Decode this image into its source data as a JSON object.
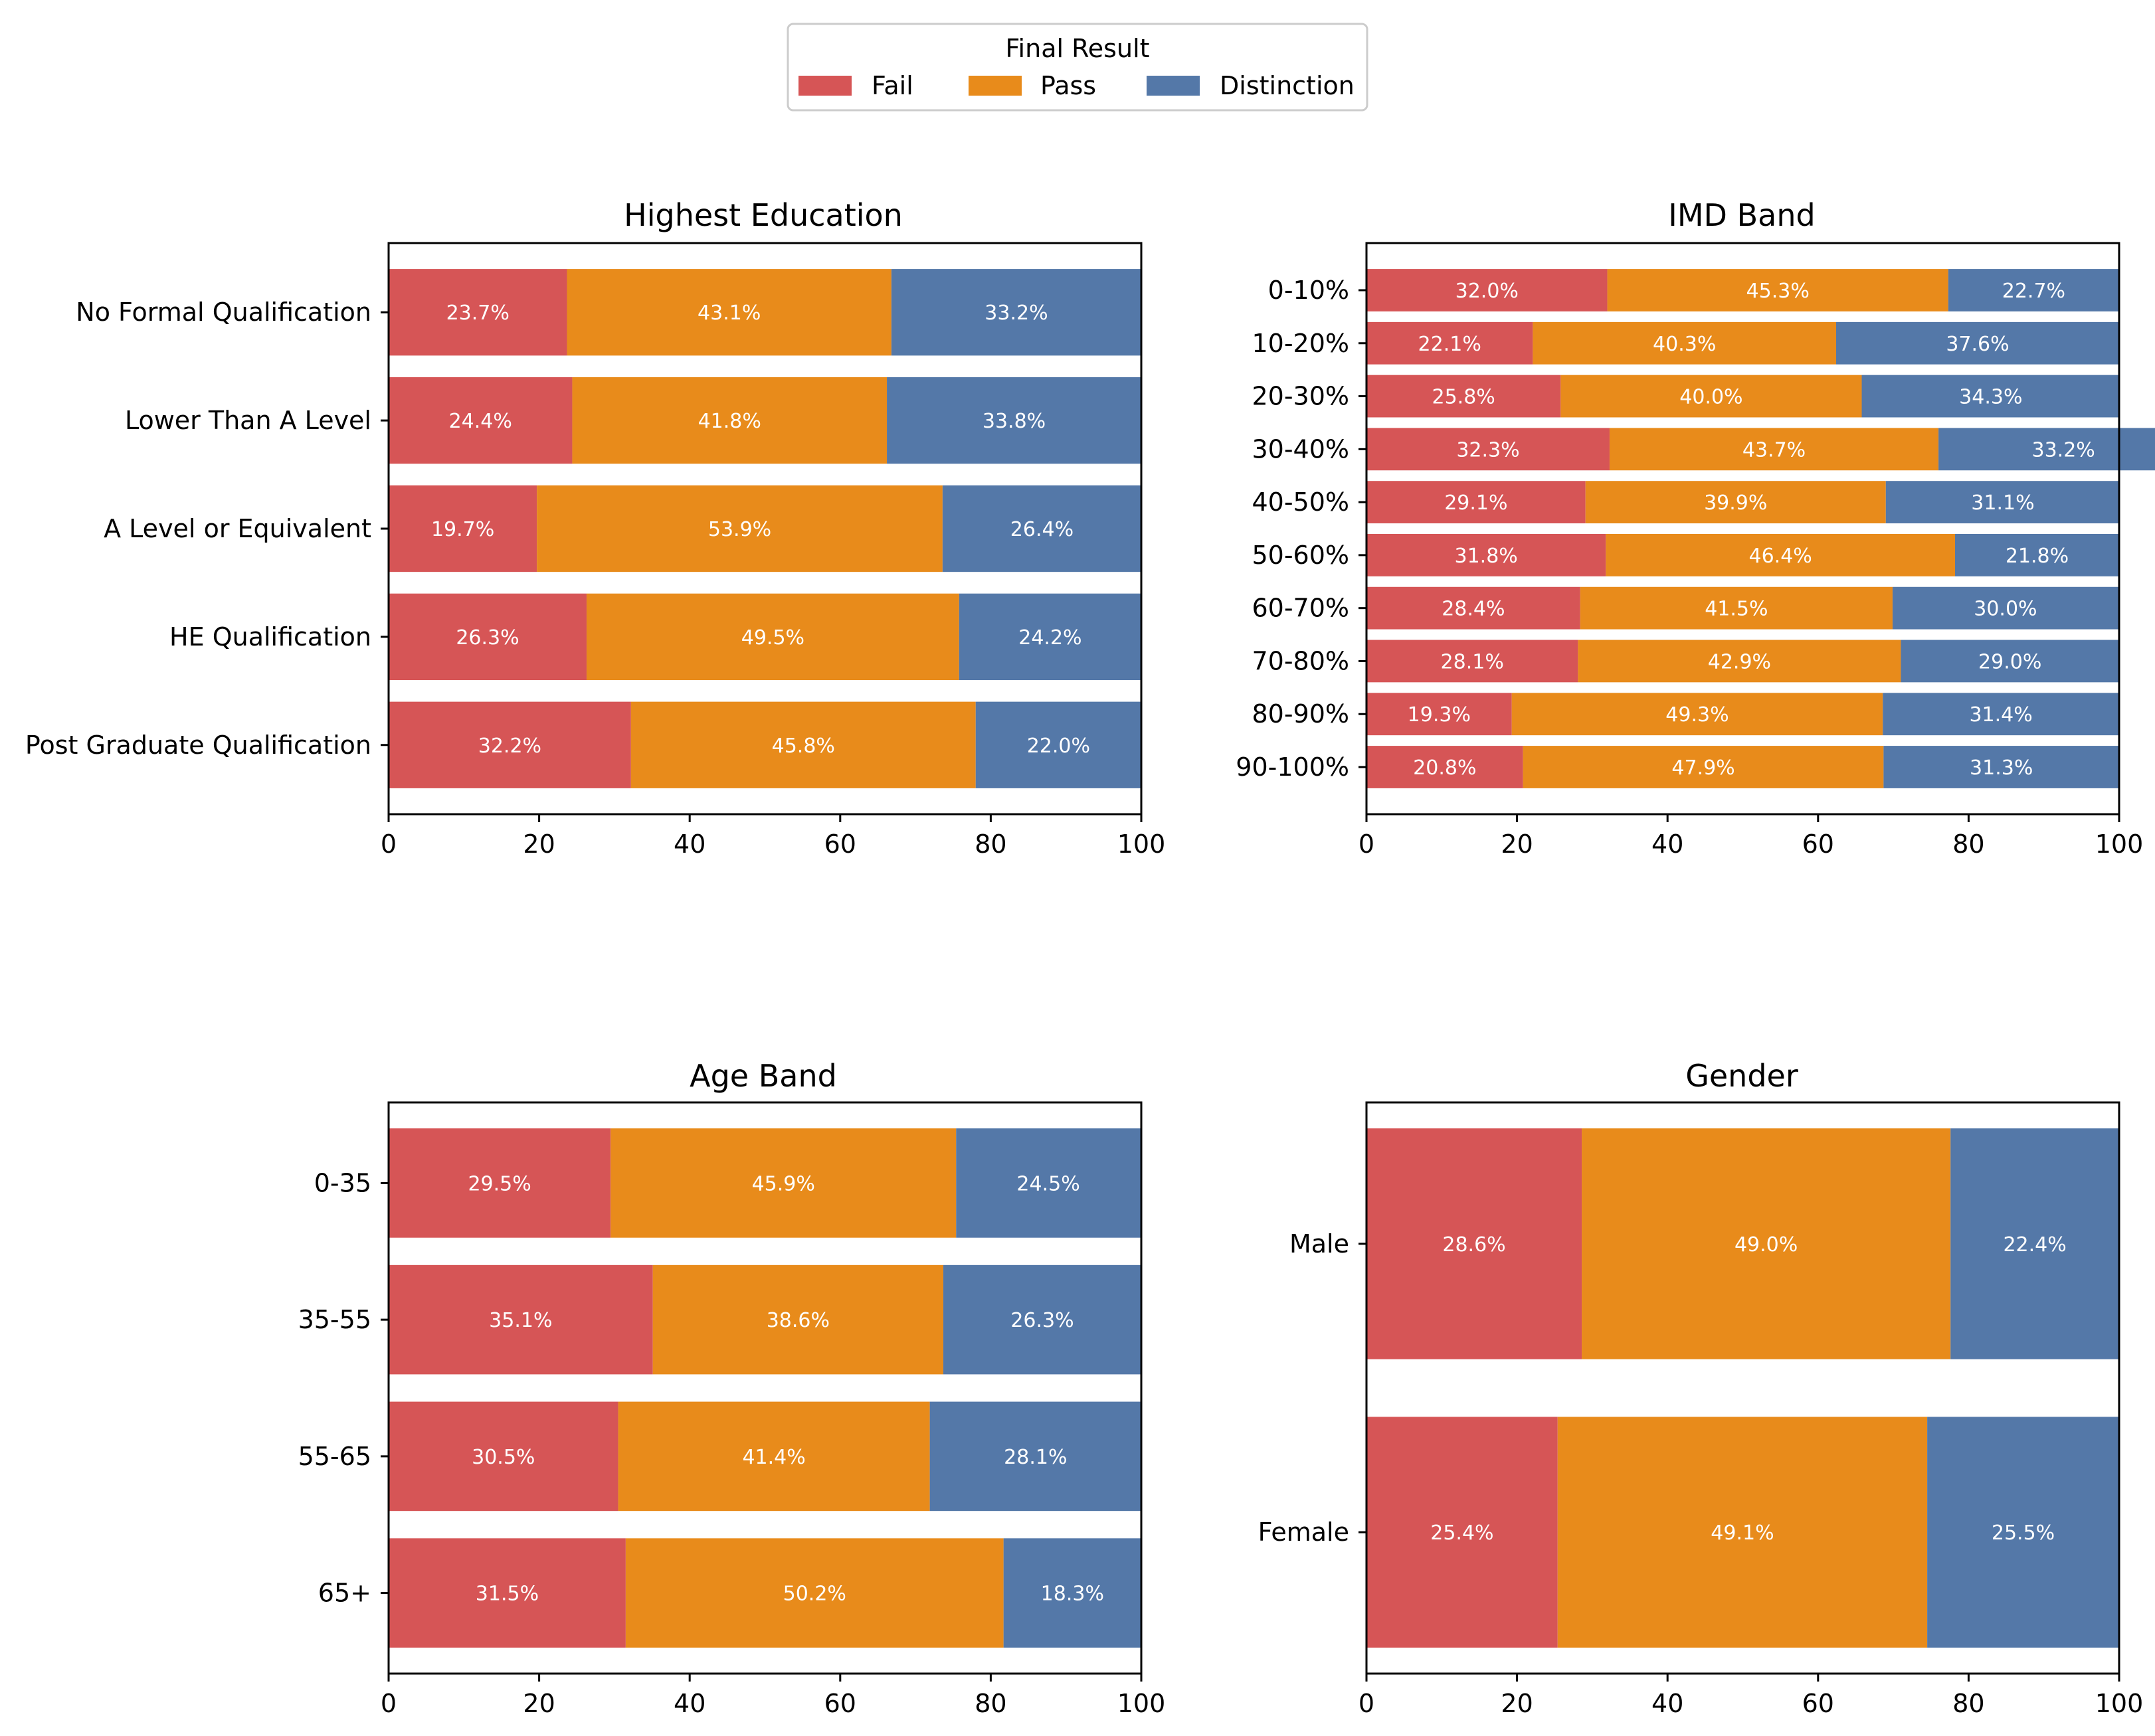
{
  "legend": {
    "title": "Final Result",
    "entries": [
      "Fail",
      "Pass",
      "Distinction"
    ]
  },
  "colors": {
    "Fail": "#d65556",
    "Pass": "#e88b1b",
    "Distinction": "#5478a8"
  },
  "chart_data": [
    {
      "type": "bar",
      "orientation": "horizontal",
      "stacked": true,
      "title": "Highest Education",
      "xlim": [
        0,
        100
      ],
      "xticks": [
        0,
        20,
        40,
        60,
        80,
        100
      ],
      "categories": [
        "No Formal Qualification",
        "Lower Than A Level",
        "A Level or Equivalent",
        "HE Qualification",
        "Post Graduate Qualification"
      ],
      "series": [
        {
          "name": "Fail",
          "values": [
            23.7,
            24.4,
            19.7,
            26.3,
            32.2
          ]
        },
        {
          "name": "Pass",
          "values": [
            43.1,
            41.8,
            53.9,
            49.5,
            45.8
          ]
        },
        {
          "name": "Distinction",
          "values": [
            33.2,
            33.8,
            26.4,
            24.2,
            22.0
          ]
        }
      ]
    },
    {
      "type": "bar",
      "orientation": "horizontal",
      "stacked": true,
      "title": "IMD Band",
      "xlim": [
        0,
        100
      ],
      "xticks": [
        0,
        20,
        40,
        60,
        80,
        100
      ],
      "categories": [
        "0-10%",
        "10-20%",
        "20-30%",
        "30-40%",
        "40-50%",
        "50-60%",
        "60-70%",
        "70-80%",
        "80-90%",
        "90-100%"
      ],
      "series": [
        {
          "name": "Fail",
          "values": [
            32.0,
            22.1,
            25.8,
            32.3,
            29.1,
            31.8,
            28.4,
            28.1,
            19.3,
            20.8
          ]
        },
        {
          "name": "Pass",
          "values": [
            45.3,
            40.3,
            40.0,
            43.7,
            39.9,
            46.4,
            41.5,
            42.9,
            49.3,
            47.9
          ]
        },
        {
          "name": "Distinction",
          "values": [
            22.7,
            37.6,
            34.3,
            33.2,
            31.1,
            21.8,
            30.0,
            29.0,
            31.4,
            31.3
          ]
        }
      ]
    },
    {
      "type": "bar",
      "orientation": "horizontal",
      "stacked": true,
      "title": "Age Band",
      "xlim": [
        0,
        100
      ],
      "xticks": [
        0,
        20,
        40,
        60,
        80,
        100
      ],
      "categories": [
        "0-35",
        "35-55",
        "55-65",
        "65+"
      ],
      "series": [
        {
          "name": "Fail",
          "values": [
            29.5,
            35.1,
            30.5,
            31.5
          ]
        },
        {
          "name": "Pass",
          "values": [
            45.9,
            38.6,
            41.4,
            50.2
          ]
        },
        {
          "name": "Distinction",
          "values": [
            24.5,
            26.3,
            28.1,
            18.3
          ]
        }
      ]
    },
    {
      "type": "bar",
      "orientation": "horizontal",
      "stacked": true,
      "title": "Gender",
      "xlim": [
        0,
        100
      ],
      "xticks": [
        0,
        20,
        40,
        60,
        80,
        100
      ],
      "categories": [
        "Male",
        "Female"
      ],
      "series": [
        {
          "name": "Fail",
          "values": [
            28.6,
            25.4
          ]
        },
        {
          "name": "Pass",
          "values": [
            49.0,
            49.1
          ]
        },
        {
          "name": "Distinction",
          "values": [
            22.4,
            25.5
          ]
        }
      ]
    }
  ]
}
